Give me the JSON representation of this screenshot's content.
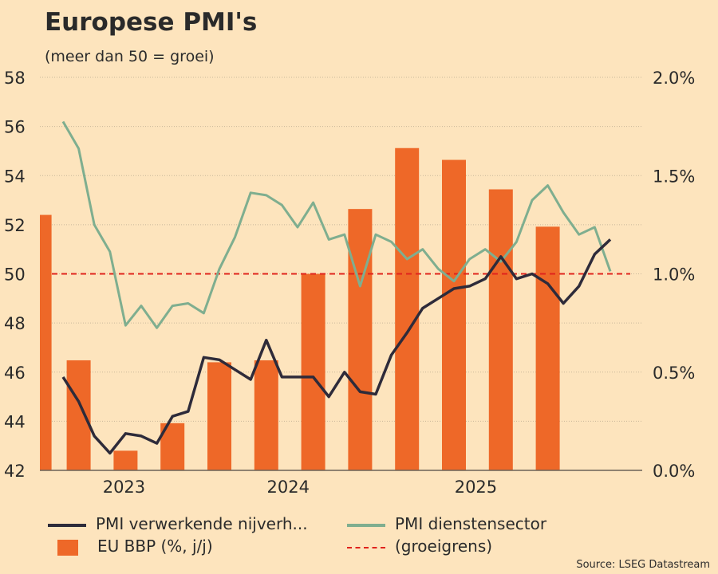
{
  "title": "Europese PMI's",
  "subtitle": "(meer dan 50 = groei)",
  "source": "Source: LSEG Datastream",
  "colors": {
    "background": "#fde4bd",
    "manufacturing": "#2e2b3a",
    "services": "#7fae8f",
    "gdp": "#ee6828",
    "threshold": "#e0231c"
  },
  "chart_data": {
    "type": "bar+line",
    "title": "Europese PMI's",
    "subtitle": "(meer dan 50 = groei)",
    "left_axis": {
      "ylim": [
        42,
        58
      ],
      "ticks": [
        "42",
        "44",
        "46",
        "48",
        "50",
        "52",
        "54",
        "56",
        "58"
      ],
      "tick_values": [
        42,
        44,
        46,
        48,
        50,
        52,
        54,
        56,
        58
      ]
    },
    "right_axis": {
      "ylim": [
        0,
        2.0
      ],
      "ticks": [
        "0.0%",
        "0.5%",
        "1.0%",
        "1.5%",
        "2.0%"
      ],
      "tick_values": [
        0,
        0.5,
        1.0,
        1.5,
        2.0
      ]
    },
    "x_axis": {
      "labels": [
        "2023",
        "2024",
        "2025"
      ],
      "label_month_index": [
        3.9,
        14.4,
        26.4
      ],
      "xlim": [
        -1.5,
        37
      ]
    },
    "series": [
      {
        "name": "PMI verwerkende nijverh...",
        "type": "line",
        "axis": "left",
        "month_index_start": 0,
        "values": [
          45.8,
          44.8,
          43.4,
          42.7,
          43.5,
          43.4,
          43.1,
          44.2,
          44.4,
          46.6,
          46.5,
          46.1,
          45.7,
          47.3,
          45.8,
          45.8,
          45.8,
          45.0,
          46.0,
          45.2,
          45.1,
          46.7,
          47.6,
          48.6,
          49.0,
          49.4,
          49.5,
          49.8,
          50.7,
          49.8,
          50.0,
          49.6,
          48.8,
          49.5,
          50.8,
          51.4
        ]
      },
      {
        "name": "PMI dienstensector",
        "type": "line",
        "axis": "left",
        "month_index_start": 0,
        "values": [
          56.2,
          55.1,
          52.0,
          50.9,
          47.9,
          48.7,
          47.8,
          48.7,
          48.8,
          48.4,
          50.2,
          51.5,
          53.3,
          53.2,
          52.8,
          51.9,
          52.9,
          51.4,
          51.6,
          49.5,
          51.6,
          51.3,
          50.6,
          51.0,
          50.2,
          49.7,
          50.6,
          51.0,
          50.5,
          51.3,
          53.0,
          53.6,
          52.5,
          51.6,
          51.9,
          50.1
        ]
      },
      {
        "name": "EU BBP (%, j/j)",
        "type": "bar",
        "axis": "right",
        "month_index": [
          -1.5,
          1,
          4,
          7,
          10,
          13,
          16,
          19,
          22,
          25,
          28,
          31
        ],
        "values": [
          1.3,
          0.56,
          0.1,
          0.24,
          0.55,
          0.56,
          1.0,
          1.33,
          1.64,
          1.58,
          1.43,
          1.24
        ]
      },
      {
        "name": "(groeigrens)",
        "type": "hline",
        "axis": "left",
        "value": 50
      }
    ],
    "grid": true,
    "legend": "bottom"
  }
}
